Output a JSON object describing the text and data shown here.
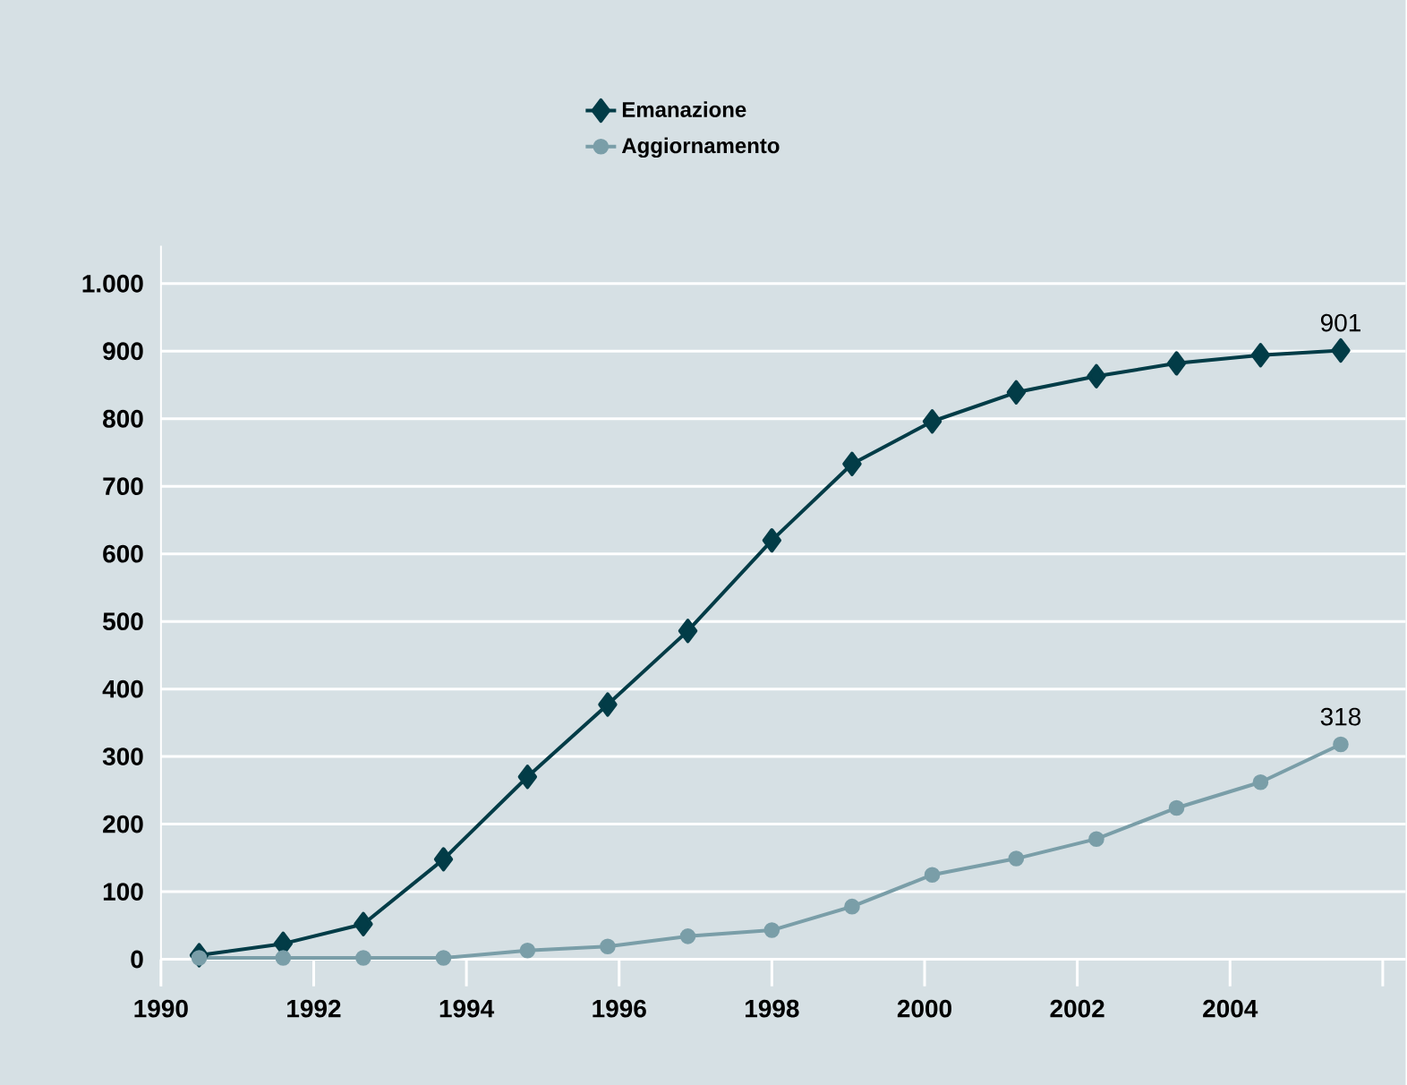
{
  "chart_data": {
    "type": "line",
    "legend": "top",
    "grid": "y",
    "line_style": "solid",
    "xlim": [
      1990,
      2006.3
    ],
    "xticks": [
      1990,
      1992,
      1994,
      1996,
      1998,
      2000,
      2002,
      2004,
      {
        "value": 2006,
        "label": null
      }
    ],
    "ylim": [
      -40,
      1056
    ],
    "yticks": [
      0,
      100,
      200,
      300,
      400,
      500,
      600,
      700,
      800,
      900,
      {
        "value": 1000,
        "label": "1.000"
      }
    ],
    "series": [
      {
        "name": "Emanazione",
        "color": "#023c47",
        "marker": "diamond",
        "x": [
          1990.5,
          1991.6,
          1992.65,
          1993.7,
          1994.8,
          1995.85,
          1996.9,
          1998.0,
          1999.05,
          2000.1,
          2001.2,
          2002.25,
          2003.3,
          2004.4,
          2005.45
        ],
        "values": [
          6,
          23,
          52,
          148,
          270,
          377,
          486,
          620,
          733,
          796,
          839,
          863,
          882,
          894,
          901
        ],
        "value_labels": [
          null,
          null,
          null,
          null,
          null,
          null,
          null,
          null,
          null,
          null,
          null,
          null,
          null,
          null,
          "901"
        ]
      },
      {
        "name": "Aggiornamento",
        "color": "#7a9ea8",
        "marker": "circle",
        "x": [
          1990.5,
          1991.6,
          1992.65,
          1993.7,
          1994.8,
          1995.85,
          1996.9,
          1998.0,
          1999.05,
          2000.1,
          2001.2,
          2002.25,
          2003.3,
          2004.4,
          2005.45
        ],
        "values": [
          2,
          2,
          2,
          2,
          13,
          19,
          34,
          43,
          78,
          125,
          149,
          178,
          224,
          262,
          318
        ],
        "value_labels": [
          null,
          null,
          null,
          null,
          null,
          null,
          null,
          null,
          null,
          null,
          null,
          null,
          null,
          null,
          "318"
        ]
      }
    ]
  }
}
